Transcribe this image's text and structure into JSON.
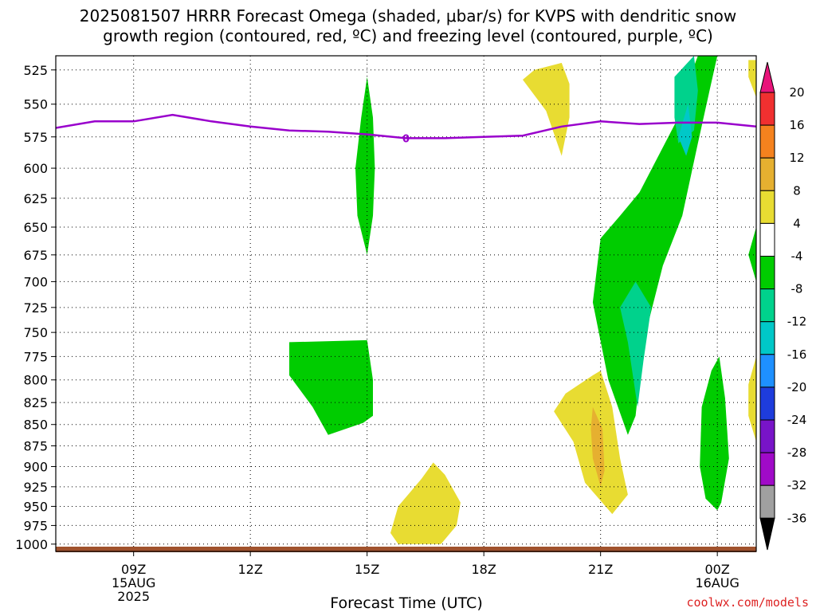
{
  "chart_data": {
    "type": "heatmap",
    "title_line1": "2025081507 HRRR Forecast Omega (shaded, μbar/s) for KVPS with dendritic snow",
    "title_line2": "growth region (contoured, red, ºC) and freezing level (contoured, purple, ºC)",
    "xlabel": "Forecast Time (UTC)",
    "credit": "coolwx.com/models",
    "x_range_hours": [
      7,
      25
    ],
    "y_range_mb": [
      1010,
      515
    ],
    "y_scale": "log",
    "grid": true,
    "x_ticks": [
      {
        "hour": 9,
        "label": "09Z",
        "sub1": "15AUG",
        "sub2": "2025"
      },
      {
        "hour": 12,
        "label": "12Z",
        "sub1": "",
        "sub2": ""
      },
      {
        "hour": 15,
        "label": "15Z",
        "sub1": "",
        "sub2": ""
      },
      {
        "hour": 18,
        "label": "18Z",
        "sub1": "",
        "sub2": ""
      },
      {
        "hour": 21,
        "label": "21Z",
        "sub1": "",
        "sub2": ""
      },
      {
        "hour": 24,
        "label": "00Z",
        "sub1": "16AUG",
        "sub2": ""
      }
    ],
    "y_ticks": [
      525,
      550,
      575,
      600,
      625,
      650,
      675,
      700,
      725,
      750,
      775,
      800,
      825,
      850,
      875,
      900,
      925,
      950,
      975,
      1000
    ],
    "colorbar": {
      "labels": [
        "20",
        "16",
        "12",
        "8",
        "4",
        "-4",
        "-8",
        "-12",
        "-16",
        "-20",
        "-24",
        "-28",
        "-32",
        "-36"
      ],
      "colors": [
        "#e8147a",
        "#f03030",
        "#f5821e",
        "#e6b030",
        "#e8dc32",
        "#ffffff",
        "#00cc00",
        "#00d28c",
        "#00c8c8",
        "#1e90ff",
        "#1e3cdc",
        "#7814c8",
        "#a00ac8",
        "#a0a0a0",
        "#000000"
      ]
    },
    "freezing_level": {
      "color": "#9900cc",
      "label": "0",
      "label_at": [
        16.0,
        576
      ],
      "points": [
        [
          7,
          568
        ],
        [
          8,
          563
        ],
        [
          9,
          563
        ],
        [
          10,
          558
        ],
        [
          11,
          563
        ],
        [
          12,
          567
        ],
        [
          13,
          570
        ],
        [
          14,
          571
        ],
        [
          15,
          573
        ],
        [
          16,
          576
        ],
        [
          17,
          576
        ],
        [
          18,
          575
        ],
        [
          19,
          574
        ],
        [
          20,
          567
        ],
        [
          21,
          563
        ],
        [
          22,
          565
        ],
        [
          23,
          564
        ],
        [
          24,
          564
        ],
        [
          25,
          567
        ]
      ]
    },
    "shaded_regions": [
      {
        "label": "-8",
        "color": "#00cc00",
        "points": [
          [
            15.0,
            530
          ],
          [
            15.15,
            560
          ],
          [
            15.2,
            600
          ],
          [
            15.15,
            640
          ],
          [
            15.0,
            675
          ],
          [
            14.75,
            640
          ],
          [
            14.7,
            600
          ],
          [
            14.85,
            560
          ]
        ]
      },
      {
        "label": "-8",
        "color": "#00cc00",
        "points": [
          [
            13.0,
            760
          ],
          [
            15.0,
            758
          ],
          [
            15.15,
            800
          ],
          [
            15.15,
            840
          ],
          [
            14.9,
            848
          ],
          [
            14.0,
            862
          ],
          [
            13.6,
            830
          ],
          [
            13.0,
            795
          ]
        ]
      },
      {
        "label": "-8",
        "color": "#00cc00",
        "points": [
          [
            23.5,
            515
          ],
          [
            24.0,
            515
          ],
          [
            23.8,
            540
          ],
          [
            23.5,
            580
          ],
          [
            23.1,
            640
          ],
          [
            22.6,
            685
          ],
          [
            22.1,
            760
          ],
          [
            21.9,
            840
          ],
          [
            21.7,
            862
          ],
          [
            21.2,
            800
          ],
          [
            20.8,
            720
          ],
          [
            21.0,
            660
          ],
          [
            21.5,
            640
          ],
          [
            22.0,
            620
          ],
          [
            23.0,
            560
          ],
          [
            23.3,
            530
          ]
        ]
      },
      {
        "label": "-8",
        "color": "#00cc00",
        "points": [
          [
            24.05,
            775
          ],
          [
            24.2,
            820
          ],
          [
            24.3,
            890
          ],
          [
            24.1,
            945
          ],
          [
            24.0,
            955
          ],
          [
            23.7,
            940
          ],
          [
            23.55,
            900
          ],
          [
            23.6,
            830
          ],
          [
            23.85,
            790
          ]
        ]
      },
      {
        "label": "-8",
        "color": "#00cc00",
        "points": [
          [
            25.0,
            650
          ],
          [
            24.8,
            675
          ],
          [
            25.0,
            700
          ]
        ]
      },
      {
        "label": "-12",
        "color": "#00d28c",
        "points": [
          [
            23.4,
            515
          ],
          [
            23.5,
            540
          ],
          [
            23.4,
            570
          ],
          [
            23.0,
            580
          ],
          [
            22.9,
            560
          ],
          [
            22.9,
            530
          ]
        ]
      },
      {
        "label": "-16",
        "color": "#00c8c8",
        "points": [
          [
            23.25,
            550
          ],
          [
            23.35,
            575
          ],
          [
            23.2,
            590
          ],
          [
            23.0,
            575
          ]
        ]
      },
      {
        "label": "-12",
        "color": "#00d28c",
        "points": [
          [
            21.9,
            700
          ],
          [
            22.3,
            725
          ],
          [
            22.1,
            780
          ],
          [
            21.95,
            830
          ],
          [
            21.7,
            760
          ],
          [
            21.5,
            725
          ]
        ]
      },
      {
        "label": "4",
        "color": "#e8dc32",
        "points": [
          [
            19.3,
            525
          ],
          [
            20.0,
            520
          ],
          [
            20.2,
            535
          ],
          [
            20.2,
            560
          ],
          [
            20.0,
            590
          ],
          [
            19.6,
            555
          ],
          [
            19.0,
            532
          ]
        ]
      },
      {
        "label": "4",
        "color": "#e8dc32",
        "points": [
          [
            24.8,
            518
          ],
          [
            25.0,
            518
          ],
          [
            25.0,
            545
          ],
          [
            24.8,
            530
          ]
        ]
      },
      {
        "label": "4",
        "color": "#e8dc32",
        "points": [
          [
            25.0,
            775
          ],
          [
            24.8,
            805
          ],
          [
            24.8,
            840
          ],
          [
            25.0,
            870
          ]
        ]
      },
      {
        "label": "4",
        "color": "#e8dc32",
        "points": [
          [
            20.8,
            795
          ],
          [
            21.0,
            790
          ],
          [
            21.3,
            830
          ],
          [
            21.5,
            890
          ],
          [
            21.7,
            935
          ],
          [
            21.3,
            960
          ],
          [
            20.6,
            920
          ],
          [
            20.3,
            870
          ],
          [
            19.8,
            835
          ],
          [
            20.1,
            815
          ]
        ]
      },
      {
        "label": "8",
        "color": "#e6b030",
        "points": [
          [
            20.8,
            830
          ],
          [
            21.05,
            855
          ],
          [
            21.1,
            905
          ],
          [
            21.0,
            925
          ],
          [
            20.8,
            890
          ],
          [
            20.75,
            855
          ]
        ]
      },
      {
        "label": "4",
        "color": "#e8dc32",
        "points": [
          [
            16.7,
            895
          ],
          [
            17.0,
            910
          ],
          [
            17.4,
            945
          ],
          [
            17.3,
            975
          ],
          [
            16.9,
            1000
          ],
          [
            15.8,
            1000
          ],
          [
            15.6,
            985
          ],
          [
            15.8,
            950
          ],
          [
            16.4,
            915
          ]
        ]
      }
    ]
  }
}
